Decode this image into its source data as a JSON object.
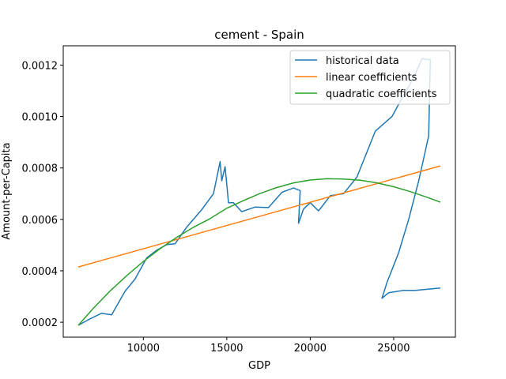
{
  "chart_data": {
    "type": "line",
    "title": "cement - Spain",
    "xlabel": "GDP",
    "ylabel": "Amount-per-Capita",
    "xlim": [
      5200,
      28700
    ],
    "ylim": [
      0.000142,
      0.001275
    ],
    "xticks": [
      10000,
      15000,
      20000,
      25000
    ],
    "xtick_labels": [
      "10000",
      "15000",
      "20000",
      "25000"
    ],
    "yticks": [
      0.0002,
      0.0004,
      0.0006,
      0.0008,
      0.001,
      0.0012
    ],
    "ytick_labels": [
      "0.0002",
      "0.0004",
      "0.0006",
      "0.0008",
      "0.0010",
      "0.0012"
    ],
    "grid": false,
    "legend_position": "top-right",
    "series": [
      {
        "name": "historical data",
        "color": "#1f77b4",
        "points": [
          [
            6100,
            0.000188
          ],
          [
            6800,
            0.000213
          ],
          [
            7500,
            0.000235
          ],
          [
            8100,
            0.000229
          ],
          [
            8900,
            0.00032
          ],
          [
            9500,
            0.000368
          ],
          [
            10200,
            0.00045
          ],
          [
            10800,
            0.00048
          ],
          [
            11400,
            0.000502
          ],
          [
            11900,
            0.000505
          ],
          [
            12600,
            0.00057
          ],
          [
            13500,
            0.000638
          ],
          [
            14200,
            0.0007
          ],
          [
            14600,
            0.000825
          ],
          [
            14700,
            0.00075
          ],
          [
            14900,
            0.000805
          ],
          [
            15100,
            0.000665
          ],
          [
            15400,
            0.000665
          ],
          [
            15900,
            0.00063
          ],
          [
            16700,
            0.000648
          ],
          [
            17500,
            0.000646
          ],
          [
            18300,
            0.000705
          ],
          [
            19000,
            0.000722
          ],
          [
            19400,
            0.000712
          ],
          [
            19300,
            0.000585
          ],
          [
            19600,
            0.00064
          ],
          [
            20000,
            0.000665
          ],
          [
            20500,
            0.000633
          ],
          [
            21200,
            0.000692
          ],
          [
            22000,
            0.0007
          ],
          [
            22800,
            0.000765
          ],
          [
            23900,
            0.000943
          ],
          [
            24900,
            0.001
          ],
          [
            25500,
            0.001072
          ],
          [
            26200,
            0.00115
          ],
          [
            26700,
            0.001225
          ],
          [
            27200,
            0.00122
          ],
          [
            27100,
            0.000925
          ],
          [
            26500,
            0.00075
          ],
          [
            25900,
            0.0006
          ],
          [
            25300,
            0.00047
          ],
          [
            24600,
            0.000355
          ],
          [
            24300,
            0.000293
          ],
          [
            24700,
            0.000315
          ],
          [
            25600,
            0.000324
          ],
          [
            26300,
            0.000324
          ],
          [
            27000,
            0.000328
          ],
          [
            27800,
            0.000333
          ]
        ]
      },
      {
        "name": "linear coefficients",
        "color": "#ff7f0e",
        "points": [
          [
            6100,
            0.000415
          ],
          [
            27800,
            0.000808
          ]
        ]
      },
      {
        "name": "quadratic coefficients",
        "color": "#2ca02c",
        "points": [
          [
            6100,
            0.000188
          ],
          [
            7000,
            0.000254
          ],
          [
            8000,
            0.000321
          ],
          [
            9000,
            0.000381
          ],
          [
            10000,
            0.000436
          ],
          [
            11000,
            0.000486
          ],
          [
            12000,
            0.00053
          ],
          [
            13000,
            0.000569
          ],
          [
            14000,
            0.000603
          ],
          [
            15000,
            0.000643
          ],
          [
            16000,
            0.000673
          ],
          [
            17000,
            0.000701
          ],
          [
            18000,
            0.000724
          ],
          [
            19000,
            0.000742
          ],
          [
            20000,
            0.000753
          ],
          [
            21000,
            0.000758
          ],
          [
            22000,
            0.000757
          ],
          [
            23000,
            0.000752
          ],
          [
            24000,
            0.000742
          ],
          [
            25000,
            0.000727
          ],
          [
            26000,
            0.000708
          ],
          [
            27000,
            0.000686
          ],
          [
            27800,
            0.000667
          ]
        ]
      }
    ]
  }
}
